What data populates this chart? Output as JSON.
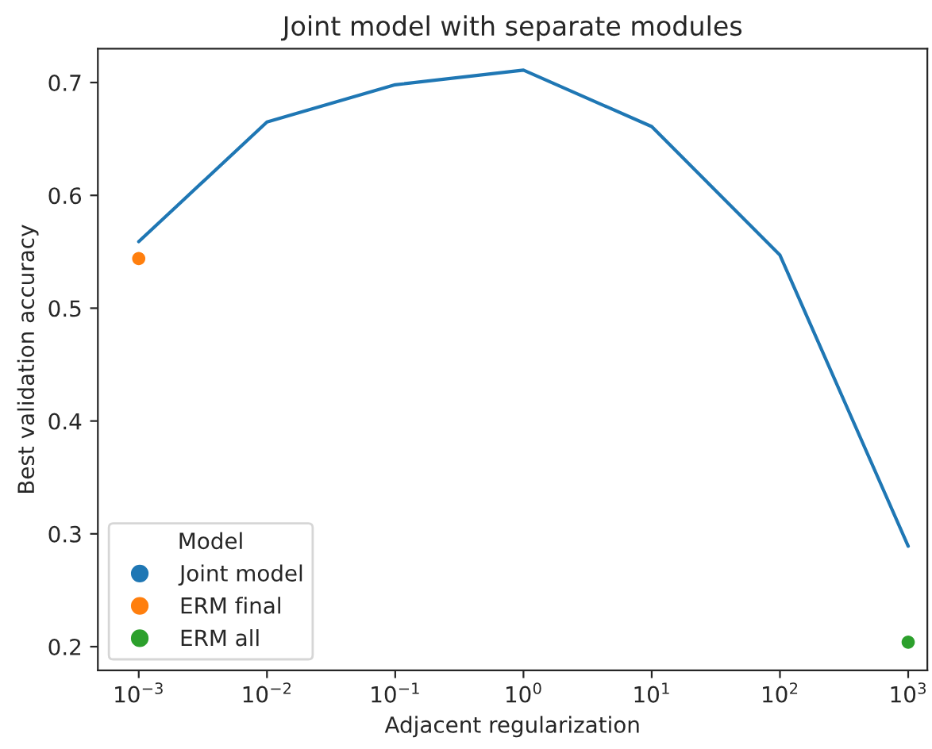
{
  "chart_data": {
    "type": "line",
    "title": "Joint model with separate modules",
    "xlabel": "Adjacent regularization",
    "ylabel": "Best validation accuracy",
    "legend_title": "Model",
    "legend": "bottom left",
    "grid": false,
    "log": "x",
    "series": [
      {
        "name": "Joint model",
        "color": "#1f77b4",
        "x": [
          0.001,
          0.01,
          0.1,
          1,
          10,
          100,
          1000
        ],
        "values": [
          0.559,
          0.665,
          0.698,
          0.711,
          0.661,
          0.547,
          0.289
        ]
      },
      {
        "name": "ERM final",
        "color": "#ff7f0e",
        "type": "scatter",
        "x": [
          0.001
        ],
        "values": [
          0.544
        ]
      },
      {
        "name": "ERM all",
        "color": "#2ca02c",
        "type": "scatter",
        "x": [
          1000
        ],
        "values": [
          0.204
        ]
      }
    ],
    "xlim": [
      0.00048,
      1410
    ],
    "ylim": [
      0.179,
      0.73
    ],
    "xticks": [
      {
        "value": 0.001,
        "label": "10$^{−3}$"
      },
      {
        "value": 0.01,
        "label": "10$^{−2}$"
      },
      {
        "value": 0.1,
        "label": "10$^{−1}$"
      },
      {
        "value": 1,
        "label": "10$^{0}$"
      },
      {
        "value": 10,
        "label": "10$^{1}$"
      },
      {
        "value": 100,
        "label": "10$^{2}$"
      },
      {
        "value": 1000,
        "label": "10$^{3}$"
      }
    ],
    "yticks": [
      0.2,
      0.3,
      0.4,
      0.5,
      0.6,
      0.7
    ]
  }
}
